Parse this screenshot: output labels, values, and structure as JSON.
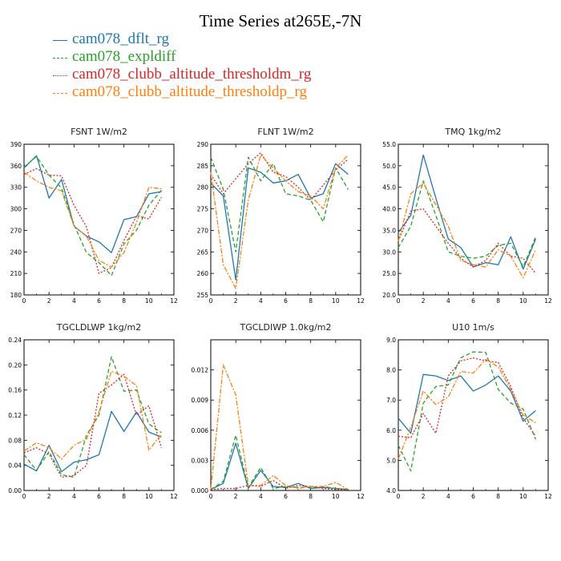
{
  "title": "Time Series at265E,-7N",
  "legend": [
    {
      "name": "cam078_dflt_rg",
      "color": "#1f77b4",
      "dash": "solid"
    },
    {
      "name": "cam078_expldiff",
      "color": "#2ca02c",
      "dash": "dashed"
    },
    {
      "name": "cam078_clubb_altitude_thresholdm_rg",
      "color": "#d62728",
      "dash": "dotted"
    },
    {
      "name": "cam078_clubb_altitude_thresholdp_rg",
      "color": "#ff7f0e",
      "dash": "dashdot"
    }
  ],
  "chart_data": [
    {
      "type": "line",
      "title": "FSNT   1W/m2",
      "xlim": [
        0,
        12
      ],
      "ylim": [
        180,
        390
      ],
      "xticks": [
        0,
        2,
        4,
        6,
        8,
        10,
        12
      ],
      "yticks": [
        180,
        210,
        240,
        270,
        300,
        330,
        360,
        390
      ],
      "ytick_labels": [
        "180",
        "210",
        "240",
        "270",
        "300",
        "330",
        "360",
        "390"
      ],
      "x": [
        0,
        1,
        2,
        3,
        4,
        5,
        6,
        7,
        8,
        9,
        10,
        11
      ],
      "series": [
        {
          "name": "cam078_dflt_rg",
          "values": [
            357,
            374,
            315,
            341,
            276,
            262,
            254,
            239,
            285,
            289,
            321,
            324
          ]
        },
        {
          "name": "cam078_expldiff",
          "values": [
            358,
            373,
            347,
            329,
            278,
            239,
            225,
            207,
            251,
            270,
            305,
            326
          ]
        },
        {
          "name": "cam078_clubb_altitude_thresholdm_rg",
          "values": [
            348,
            356,
            347,
            346,
            305,
            275,
            210,
            218,
            256,
            290,
            286,
            316
          ]
        },
        {
          "name": "cam078_clubb_altitude_thresholdp_rg",
          "values": [
            351,
            339,
            330,
            325,
            276,
            262,
            228,
            219,
            239,
            281,
            330,
            328
          ]
        }
      ]
    },
    {
      "type": "line",
      "title": "FLNT   1W/m2",
      "xlim": [
        0,
        12
      ],
      "ylim": [
        255,
        290
      ],
      "xticks": [
        0,
        2,
        4,
        6,
        8,
        10,
        12
      ],
      "yticks": [
        255,
        260,
        265,
        270,
        275,
        280,
        285,
        290
      ],
      "ytick_labels": [
        "255",
        "260",
        "265",
        "270",
        "275",
        "280",
        "285",
        "290"
      ],
      "x": [
        0,
        1,
        2,
        3,
        4,
        5,
        6,
        7,
        8,
        9,
        10,
        11
      ],
      "series": [
        {
          "name": "cam078_dflt_rg",
          "values": [
            281,
            278,
            258.5,
            284.5,
            283.5,
            281,
            281.5,
            283,
            277.5,
            278.5,
            285.5,
            283
          ]
        },
        {
          "name": "cam078_expldiff",
          "values": [
            287,
            279.5,
            265,
            287,
            281.5,
            285.5,
            278.5,
            278,
            277,
            272,
            284.5,
            279.5
          ]
        },
        {
          "name": "cam078_clubb_altitude_thresholdm_rg",
          "values": [
            283,
            278.5,
            282,
            285.5,
            288,
            283.5,
            282.5,
            280,
            277,
            280.5,
            284,
            286.5
          ]
        },
        {
          "name": "cam078_clubb_altitude_thresholdp_rg",
          "values": [
            283.5,
            262,
            256.5,
            277,
            287.5,
            284.5,
            281.5,
            279,
            278,
            275,
            284.5,
            287.5
          ]
        }
      ]
    },
    {
      "type": "line",
      "title": "TMQ   1kg/m2",
      "xlim": [
        0,
        12
      ],
      "ylim": [
        20,
        55
      ],
      "xticks": [
        0,
        2,
        4,
        6,
        8,
        10,
        12
      ],
      "yticks": [
        20,
        25,
        30,
        35,
        40,
        45,
        50,
        55
      ],
      "ytick_labels": [
        "20.0",
        "25.0",
        "30.0",
        "35.0",
        "40.0",
        "45.0",
        "50.0",
        "55.0"
      ],
      "x": [
        0,
        1,
        2,
        3,
        4,
        5,
        6,
        7,
        8,
        9,
        10,
        11
      ],
      "series": [
        {
          "name": "cam078_dflt_rg",
          "values": [
            34.5,
            38.5,
            52.5,
            42.5,
            33,
            31,
            26.5,
            27.5,
            27,
            33.5,
            26,
            33
          ]
        },
        {
          "name": "cam078_expldiff",
          "values": [
            31,
            36,
            46.5,
            38.5,
            30,
            29,
            28.5,
            29,
            31.5,
            32,
            26.5,
            33.5
          ]
        },
        {
          "name": "cam078_clubb_altitude_thresholdm_rg",
          "values": [
            32.5,
            39.5,
            40,
            36,
            32,
            28.5,
            26.5,
            28,
            32,
            29,
            28.5,
            25
          ]
        },
        {
          "name": "cam078_clubb_altitude_thresholdp_rg",
          "values": [
            32.5,
            43.5,
            46,
            41,
            36,
            28,
            27,
            26.5,
            30.5,
            29,
            24,
            30.5
          ]
        }
      ]
    },
    {
      "type": "line",
      "title": "TGCLDLWP   1kg/m2",
      "xlim": [
        0,
        12
      ],
      "ylim": [
        0,
        0.24
      ],
      "xticks": [
        0,
        2,
        4,
        6,
        8,
        10,
        12
      ],
      "yticks": [
        0,
        0.04,
        0.08,
        0.12,
        0.16,
        0.2,
        0.24
      ],
      "ytick_labels": [
        "0.00",
        "0.04",
        "0.08",
        "0.12",
        "0.16",
        "0.20",
        "0.24"
      ],
      "x": [
        0,
        1,
        2,
        3,
        4,
        5,
        6,
        7,
        8,
        9,
        10,
        11
      ],
      "series": [
        {
          "name": "cam078_dflt_rg",
          "values": [
            0.042,
            0.031,
            0.072,
            0.03,
            0.045,
            0.049,
            0.057,
            0.126,
            0.094,
            0.125,
            0.093,
            0.085
          ]
        },
        {
          "name": "cam078_expldiff",
          "values": [
            0.057,
            0.032,
            0.062,
            0.025,
            0.021,
            0.088,
            0.12,
            0.213,
            0.158,
            0.16,
            0.106,
            0.092
          ]
        },
        {
          "name": "cam078_clubb_altitude_thresholdm_rg",
          "values": [
            0.06,
            0.068,
            0.058,
            0.021,
            0.024,
            0.04,
            0.155,
            0.168,
            0.185,
            0.12,
            0.135,
            0.068
          ]
        },
        {
          "name": "cam078_clubb_altitude_thresholdp_rg",
          "values": [
            0.063,
            0.076,
            0.068,
            0.05,
            0.072,
            0.082,
            0.125,
            0.19,
            0.182,
            0.167,
            0.064,
            0.09
          ]
        }
      ]
    },
    {
      "type": "line",
      "title": "TGCLDIWP   1.0kg/m2",
      "xlim": [
        0,
        12
      ],
      "ylim": [
        0,
        0.015
      ],
      "xticks": [
        0,
        2,
        4,
        6,
        8,
        10,
        12
      ],
      "yticks": [
        0,
        0.003,
        0.006,
        0.009,
        0.012
      ],
      "ytick_labels": [
        "0.000",
        "0.003",
        "0.006",
        "0.009",
        "0.012"
      ],
      "x": [
        0,
        1,
        2,
        3,
        4,
        5,
        6,
        7,
        8,
        9,
        10,
        11
      ],
      "series": [
        {
          "name": "cam078_dflt_rg",
          "values": [
            0.0001,
            0.0007,
            0.0047,
            0.0002,
            0.002,
            0.0004,
            0.0003,
            0.0007,
            0.0002,
            0.0003,
            0.0002,
            0.0001
          ]
        },
        {
          "name": "cam078_expldiff",
          "values": [
            0.0001,
            0.0009,
            0.0055,
            0.0003,
            0.0023,
            0.0002,
            0.0004,
            0.0003,
            0.0003,
            0.0004,
            0.0002,
            0.0001
          ]
        },
        {
          "name": "cam078_clubb_altitude_thresholdm_rg",
          "values": [
            0.0001,
            0.0002,
            0.0002,
            0.0005,
            0.0004,
            0.001,
            0.0002,
            0.0005,
            0.0004,
            0.0002,
            0.0001,
            0.0001
          ]
        },
        {
          "name": "cam078_clubb_altitude_thresholdp_rg",
          "values": [
            0.0001,
            0.0125,
            0.0095,
            0.0005,
            0.0005,
            0.0015,
            0.0005,
            0.0002,
            0.0004,
            0.0004,
            0.0008,
            0.0001
          ]
        }
      ]
    },
    {
      "type": "line",
      "title": "U10   1m/s",
      "xlim": [
        0,
        12
      ],
      "ylim": [
        4,
        9
      ],
      "xticks": [
        0,
        2,
        4,
        6,
        8,
        10,
        12
      ],
      "yticks": [
        4,
        5,
        6,
        7,
        8,
        9
      ],
      "ytick_labels": [
        "4.0",
        "5.0",
        "6.0",
        "7.0",
        "8.0",
        "9.0"
      ],
      "x": [
        0,
        1,
        2,
        3,
        4,
        5,
        6,
        7,
        8,
        9,
        10,
        11
      ],
      "series": [
        {
          "name": "cam078_dflt_rg",
          "values": [
            6.4,
            5.9,
            7.85,
            7.8,
            7.65,
            7.8,
            7.3,
            7.5,
            7.8,
            7.3,
            6.3,
            6.65
          ]
        },
        {
          "name": "cam078_expldiff",
          "values": [
            5.5,
            4.65,
            6.9,
            7.45,
            7.5,
            8.4,
            8.6,
            8.58,
            7.35,
            6.9,
            6.7,
            5.7
          ]
        },
        {
          "name": "cam078_clubb_altitude_thresholdm_rg",
          "values": [
            5.8,
            5.75,
            6.55,
            5.9,
            7.8,
            8.3,
            8.4,
            8.3,
            8.25,
            7.45,
            6.4,
            5.8
          ]
        },
        {
          "name": "cam078_clubb_altitude_thresholdp_rg",
          "values": [
            5.05,
            6.1,
            7.3,
            6.85,
            7.1,
            7.95,
            7.9,
            8.35,
            8.1,
            7.35,
            6.5,
            6.25
          ]
        }
      ]
    }
  ]
}
